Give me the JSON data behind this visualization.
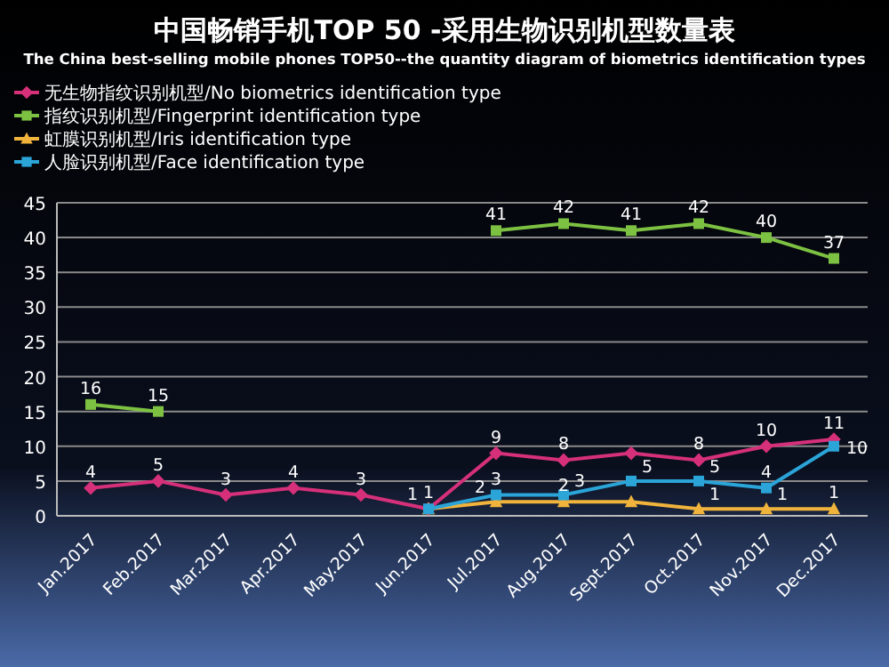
{
  "chart_data": {
    "type": "line",
    "title": "中国畅销手机TOP 50 -采用生物识别机型数量表",
    "subtitle": "The China best-selling mobile phones TOP50--the quantity diagram of biometrics identification types",
    "categories": [
      "Jan.2017",
      "Feb.2017",
      "Mar.2017",
      "Apr.2017",
      "May.2017",
      "Jun.2017",
      "Jul.2017",
      "Aug.2017",
      "Sept.2017",
      "Oct.2017",
      "Nov.2017",
      "Dec.2017"
    ],
    "ylim": [
      0,
      45
    ],
    "yticks": [
      0,
      5,
      10,
      15,
      20,
      25,
      30,
      35,
      40,
      45
    ],
    "grid": "y",
    "legend": "top",
    "series": [
      {
        "name": "无生物指纹识别机型/No biometrics identification type",
        "color": "#d6307a",
        "marker": "diamond",
        "values": [
          4,
          5,
          3,
          4,
          3,
          1,
          9,
          8,
          9,
          8,
          10,
          11
        ],
        "value_labels": [
          "4",
          "5",
          "3",
          "4",
          "3",
          "1",
          "9",
          "8",
          null,
          "8",
          "10",
          "11"
        ]
      },
      {
        "name": "指纹识别机型/Fingerprint identification type",
        "color": "#7dc142",
        "marker": "square",
        "values": [
          16,
          15,
          null,
          null,
          null,
          null,
          41,
          42,
          41,
          42,
          40,
          37
        ],
        "value_labels": [
          "16",
          "15",
          null,
          null,
          null,
          null,
          "41",
          "42",
          "41",
          "42",
          "40",
          "37"
        ]
      },
      {
        "name": "虹膜识别机型/Iris identification type",
        "color": "#f0b43c",
        "marker": "triangle",
        "values": [
          null,
          null,
          null,
          null,
          null,
          1,
          2,
          2,
          2,
          1,
          1,
          1
        ],
        "value_labels": [
          null,
          null,
          null,
          null,
          null,
          null,
          "2",
          "2",
          null,
          "1",
          "1",
          "1"
        ]
      },
      {
        "name": "人脸识别机型/Face identification type",
        "color": "#2ba4d8",
        "marker": "square",
        "values": [
          null,
          null,
          null,
          null,
          null,
          1,
          3,
          3,
          5,
          5,
          4,
          10
        ],
        "value_labels": [
          null,
          null,
          null,
          null,
          null,
          "1",
          "3",
          "3",
          "5",
          "5",
          "4",
          "10"
        ]
      }
    ]
  }
}
